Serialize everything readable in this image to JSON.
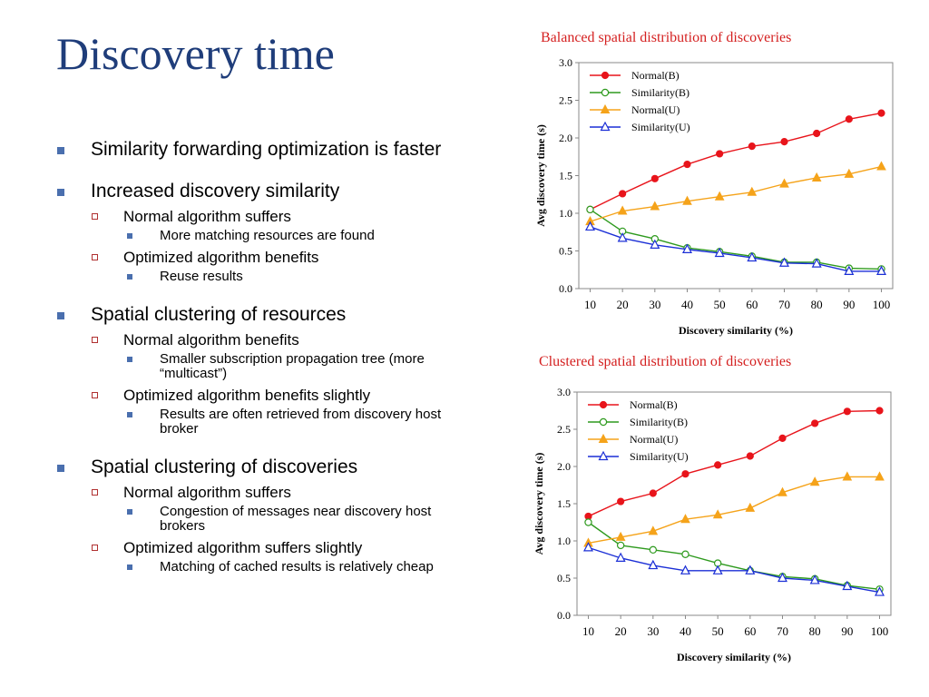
{
  "slide": {
    "title": "Discovery time",
    "bullets": [
      {
        "level": 1,
        "text": "Similarity forwarding optimization is faster"
      },
      {
        "level": 1,
        "text": "Increased discovery similarity"
      },
      {
        "level": 2,
        "text": "Normal algorithm suffers"
      },
      {
        "level": 3,
        "text": "More matching resources are found"
      },
      {
        "level": 2,
        "text": "Optimized algorithm benefits"
      },
      {
        "level": 3,
        "text": "Reuse results"
      },
      {
        "level": 1,
        "text": "Spatial clustering of resources"
      },
      {
        "level": 2,
        "text": "Normal algorithm benefits"
      },
      {
        "level": 3,
        "text": "Smaller subscription propagation tree (more “multicast”)"
      },
      {
        "level": 2,
        "text": "Optimized algorithm benefits slightly"
      },
      {
        "level": 3,
        "text": "Results are often retrieved from discovery host broker"
      },
      {
        "level": 1,
        "text": "Spatial clustering of discoveries"
      },
      {
        "level": 2,
        "text": "Normal algorithm suffers"
      },
      {
        "level": 3,
        "text": "Congestion of messages near discovery host brokers"
      },
      {
        "level": 2,
        "text": "Optimized algorithm suffers slightly"
      },
      {
        "level": 3,
        "text": "Matching of cached results is relatively cheap"
      }
    ]
  },
  "colors": {
    "title": "#1f3d7a",
    "bullet_square": "#4a6fae",
    "chart_title": "#d41f1f"
  },
  "chart_data": [
    {
      "type": "line",
      "title": "Balanced spatial distribution of discoveries",
      "xlabel": "Discovery similarity (%)",
      "ylabel": "Avg discovery time (s)",
      "x": [
        10,
        20,
        30,
        40,
        50,
        60,
        70,
        80,
        90,
        100
      ],
      "ylim": [
        0,
        3.0
      ],
      "yticks": [
        "0.0",
        "0.5",
        "1.0",
        "1.5",
        "2.0",
        "2.5",
        "3.0"
      ],
      "legend_position": "top-left",
      "grid": false,
      "series": [
        {
          "name": "Normal(B)",
          "color": "#e8141b",
          "marker": "filled-circle",
          "values": [
            1.05,
            1.26,
            1.46,
            1.65,
            1.79,
            1.89,
            1.95,
            2.06,
            2.25,
            2.33
          ]
        },
        {
          "name": "Similarity(B)",
          "color": "#2e9a1e",
          "marker": "open-circle",
          "values": [
            1.05,
            0.76,
            0.66,
            0.54,
            0.49,
            0.43,
            0.35,
            0.35,
            0.27,
            0.26
          ]
        },
        {
          "name": "Normal(U)",
          "color": "#f5a31a",
          "marker": "filled-triangle",
          "values": [
            0.89,
            1.03,
            1.09,
            1.16,
            1.22,
            1.28,
            1.39,
            1.47,
            1.52,
            1.62
          ]
        },
        {
          "name": "Similarity(U)",
          "color": "#1b2fd6",
          "marker": "open-triangle",
          "values": [
            0.82,
            0.67,
            0.58,
            0.52,
            0.47,
            0.41,
            0.34,
            0.33,
            0.23,
            0.23
          ]
        }
      ]
    },
    {
      "type": "line",
      "title": "Clustered spatial distribution of discoveries",
      "xlabel": "Discovery similarity (%)",
      "ylabel": "Avg discovery time (s)",
      "x": [
        10,
        20,
        30,
        40,
        50,
        60,
        70,
        80,
        90,
        100
      ],
      "ylim": [
        0,
        3.0
      ],
      "yticks": [
        "0.0",
        "0.5",
        "1.0",
        "1.5",
        "2.0",
        "2.5",
        "3.0"
      ],
      "legend_position": "top-left",
      "grid": false,
      "series": [
        {
          "name": "Normal(B)",
          "color": "#e8141b",
          "marker": "filled-circle",
          "values": [
            1.33,
            1.53,
            1.64,
            1.9,
            2.02,
            2.14,
            2.38,
            2.58,
            2.74,
            2.75
          ]
        },
        {
          "name": "Similarity(B)",
          "color": "#2e9a1e",
          "marker": "open-circle",
          "values": [
            1.25,
            0.94,
            0.88,
            0.82,
            0.7,
            0.6,
            0.52,
            0.49,
            0.4,
            0.35
          ]
        },
        {
          "name": "Normal(U)",
          "color": "#f5a31a",
          "marker": "filled-triangle",
          "values": [
            0.97,
            1.05,
            1.13,
            1.29,
            1.35,
            1.44,
            1.65,
            1.79,
            1.86,
            1.86
          ]
        },
        {
          "name": "Similarity(U)",
          "color": "#1b2fd6",
          "marker": "open-triangle",
          "values": [
            0.91,
            0.77,
            0.67,
            0.6,
            0.6,
            0.6,
            0.5,
            0.47,
            0.39,
            0.31
          ]
        }
      ]
    }
  ]
}
